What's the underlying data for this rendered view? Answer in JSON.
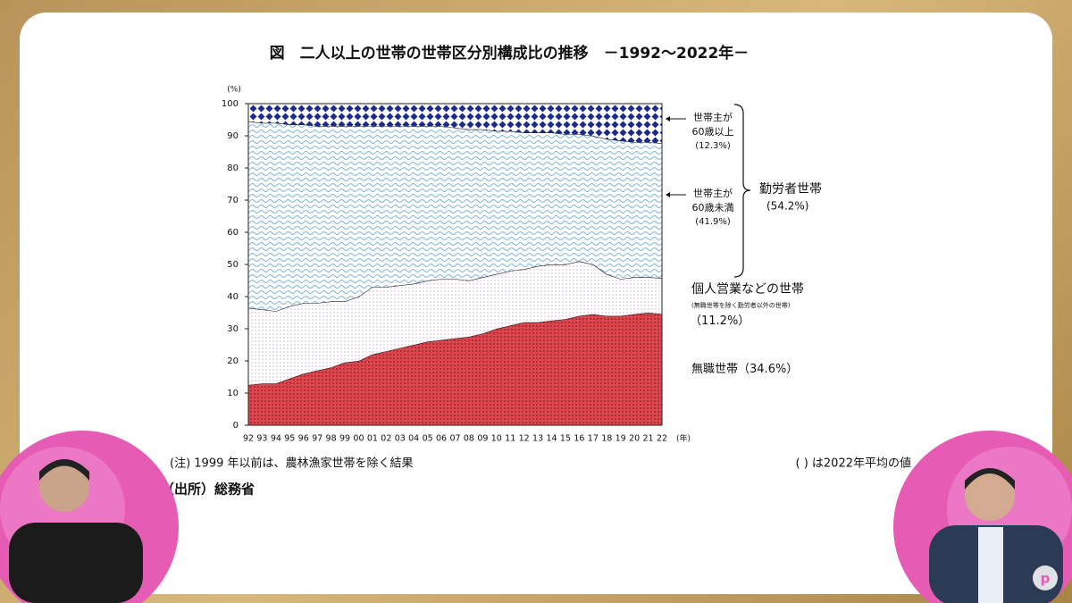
{
  "chart_data": {
    "type": "stacked-area",
    "title": "図　二人以上の世帯の世帯区分別構成比の推移　－1992～2022年－",
    "y_label": "(%)",
    "x_label": "(年)",
    "categories": [
      "92",
      "93",
      "94",
      "95",
      "96",
      "97",
      "98",
      "99",
      "00",
      "01",
      "02",
      "03",
      "04",
      "05",
      "06",
      "07",
      "08",
      "09",
      "10",
      "11",
      "12",
      "13",
      "14",
      "15",
      "16",
      "17",
      "18",
      "19",
      "20",
      "21",
      "22"
    ],
    "ylim": [
      0,
      100
    ],
    "yticks": [
      0,
      10,
      20,
      30,
      40,
      50,
      60,
      70,
      80,
      90,
      100
    ],
    "series": [
      {
        "name": "無職世帯",
        "note": "（34.6%）",
        "color": "#e0454f",
        "values": [
          12.5,
          13,
          13,
          14.5,
          16,
          17,
          18,
          19.5,
          20,
          22,
          23,
          24,
          25,
          26,
          26.5,
          27,
          27.5,
          28.5,
          30,
          31,
          32,
          32,
          32.5,
          33,
          34,
          34.5,
          34,
          34,
          34.5,
          35,
          34.6
        ]
      },
      {
        "name": "個人営業などの世帯",
        "sub": "(無職世帯を除く勤労者以外の世帯)",
        "note": "（11.2%）",
        "color": "#e7a9c8",
        "values": [
          24,
          23,
          22.5,
          22.5,
          22,
          21,
          20.5,
          19,
          20,
          21,
          20,
          19.5,
          19,
          19,
          19,
          18.5,
          17.5,
          17.5,
          17,
          17,
          16.5,
          17.5,
          17.5,
          17,
          17,
          15.5,
          13,
          11.5,
          11.5,
          11,
          11.2
        ]
      },
      {
        "name": "世帯主が60歳未満",
        "note": "(41.9%)",
        "color": "#7fb6de",
        "values": [
          58,
          58,
          58.5,
          56.5,
          55.5,
          55,
          54.5,
          54.5,
          53,
          50,
          50,
          49.5,
          49,
          48,
          47.5,
          47,
          47,
          46,
          44.5,
          43.5,
          42.5,
          41.5,
          41,
          40.5,
          39.5,
          40,
          42,
          43,
          42,
          42,
          41.9
        ]
      },
      {
        "name": "世帯主が60歳以上",
        "note": "(12.3%)",
        "color": "#1c2a8c",
        "values": [
          5.5,
          6,
          6,
          6.5,
          6.5,
          7,
          7,
          7,
          7,
          7,
          7,
          7,
          7,
          7,
          7,
          7.5,
          8,
          8,
          8.5,
          8.5,
          9,
          9,
          9,
          9.5,
          9.5,
          10,
          11,
          11.5,
          12,
          12,
          12.3
        ]
      }
    ],
    "group": {
      "name": "勤労者世帯",
      "note": "(54.2%)"
    },
    "notes": [
      "(注) 1999 年以前は、農林漁家世帯を除く結果",
      "( ) は2022年平均の値",
      "（出所）総務省"
    ]
  }
}
